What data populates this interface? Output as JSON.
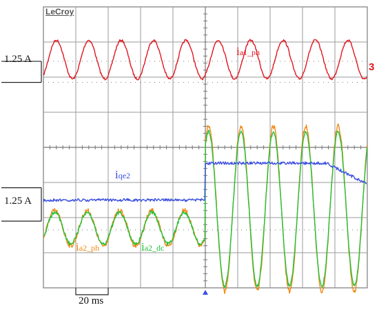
{
  "brand": "LeCroy",
  "scale_labels": {
    "top": "1.25 A",
    "bottom": "1.25 A"
  },
  "time_scale_label": "20 ms",
  "channel_marker": "3",
  "colors": {
    "ia1_ph": "#e0141e",
    "iqe2": "#3a4fe0",
    "ia2_ph": "#f08a14",
    "ia2_dc": "#21c23a",
    "grid": "#9a9a9a",
    "frame": "#7a7a7a",
    "background": "#ffffff"
  },
  "chart_data": [
    {
      "type": "line",
      "title": "",
      "series": [
        {
          "name": "ia1_ph",
          "label_main": "i",
          "label_sub": "a1_ph",
          "amplitude_div": 0.55,
          "period_ms": 20,
          "cycles": 8
        }
      ],
      "xlim": [
        0,
        200
      ],
      "xunit": "ms",
      "xdiv": 20,
      "ylabel": "1.25 A"
    },
    {
      "type": "line",
      "title": "",
      "step_time_ms": 100,
      "series": [
        {
          "name": "iqe2",
          "label_main": "i",
          "label_sub": "qe2",
          "level_before_div": 0,
          "level_after_div": 1.05,
          "level_end_div": 0.45
        },
        {
          "name": "ia2_ph",
          "label_main": "i",
          "label_sub": "a2_ph",
          "amplitude_before_div": 0.5,
          "amplitude_after_div": 2.35,
          "period_ms": 20
        },
        {
          "name": "ia2_dc",
          "label_main": "i",
          "label_sub": "a2_dc",
          "amplitude_before_div": 0.45,
          "amplitude_after_div": 2.2,
          "period_ms": 20
        }
      ],
      "xlim": [
        0,
        200
      ],
      "xunit": "ms",
      "xdiv": 20,
      "ylabel": "1.25 A"
    }
  ]
}
